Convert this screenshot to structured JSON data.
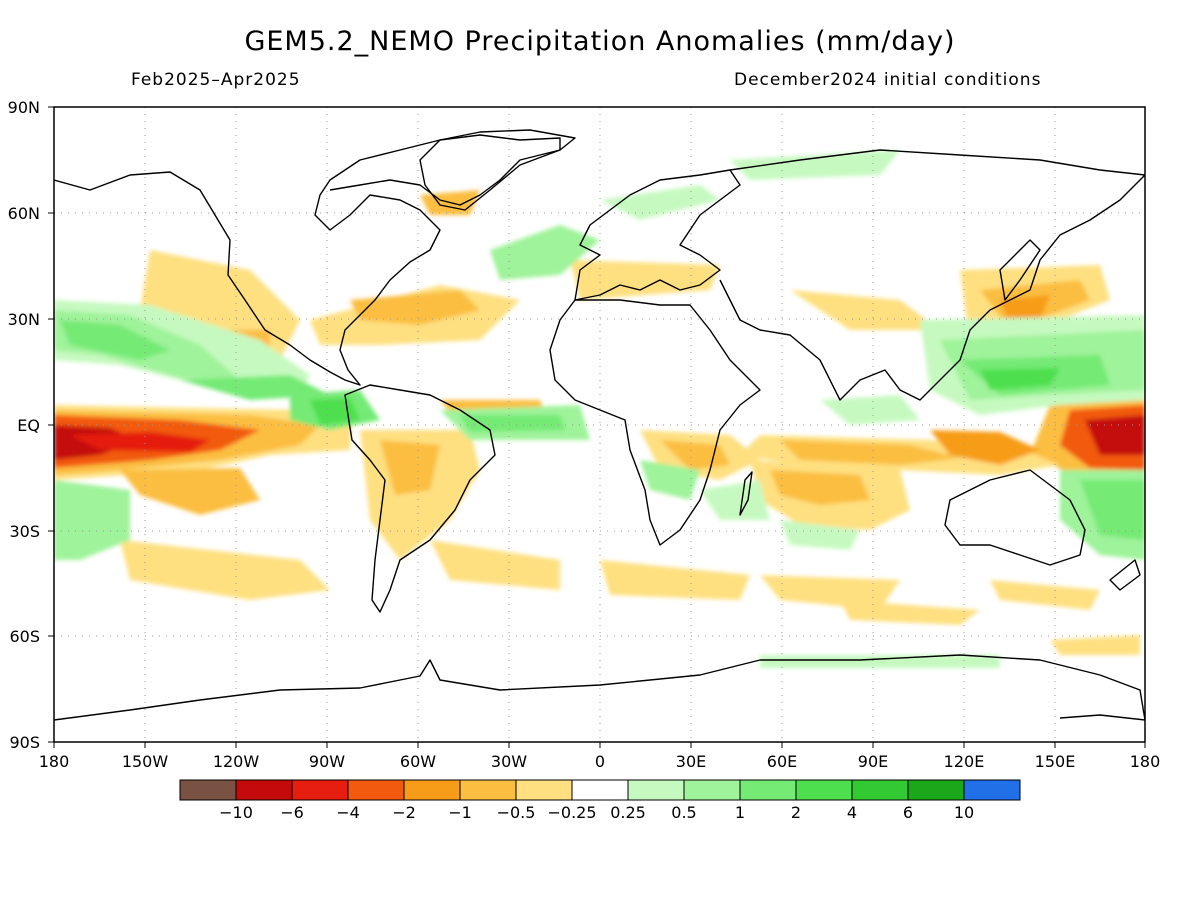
{
  "title": "GEM5.2_NEMO Precipitation Anomalies (mm/day)",
  "period": "Feb2025–Apr2025",
  "initial_conditions": "December2024 initial conditions",
  "lat_labels": [
    "90N",
    "60N",
    "30N",
    "EQ",
    "30S",
    "60S",
    "90S"
  ],
  "lon_labels": [
    "180",
    "150W",
    "120W",
    "90W",
    "60W",
    "30W",
    "0",
    "30E",
    "60E",
    "90E",
    "120E",
    "150E",
    "180"
  ],
  "legend": {
    "colors": [
      "#7a5244",
      "#c40a0a",
      "#e51e10",
      "#f25a10",
      "#f79c18",
      "#fbbe40",
      "#fee080",
      "#ffffff",
      "#c6f9c0",
      "#9ff39a",
      "#75ea75",
      "#4ddf4d",
      "#33c933",
      "#1aa81a",
      "#2170e8"
    ],
    "labels": [
      "−10",
      "−6",
      "−4",
      "−2",
      "−1",
      "−0.5",
      "−0.25",
      "0.25",
      "0.5",
      "1",
      "2",
      "4",
      "6",
      "10"
    ]
  }
}
